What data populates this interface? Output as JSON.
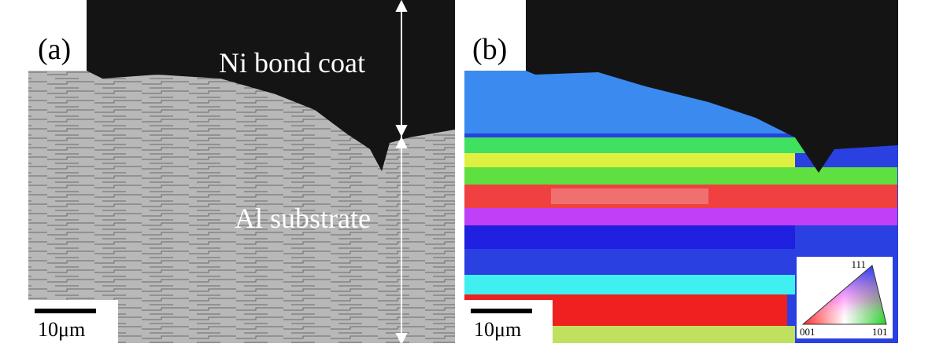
{
  "panels": [
    {
      "label": "(a)",
      "annotations": [
        "Ni bond coat",
        "Al substrate"
      ],
      "scale_bar": "10μm"
    },
    {
      "label": "(b)",
      "scale_bar": "10μm",
      "legend": {
        "top": "111",
        "left": "001",
        "right": "101"
      }
    }
  ]
}
